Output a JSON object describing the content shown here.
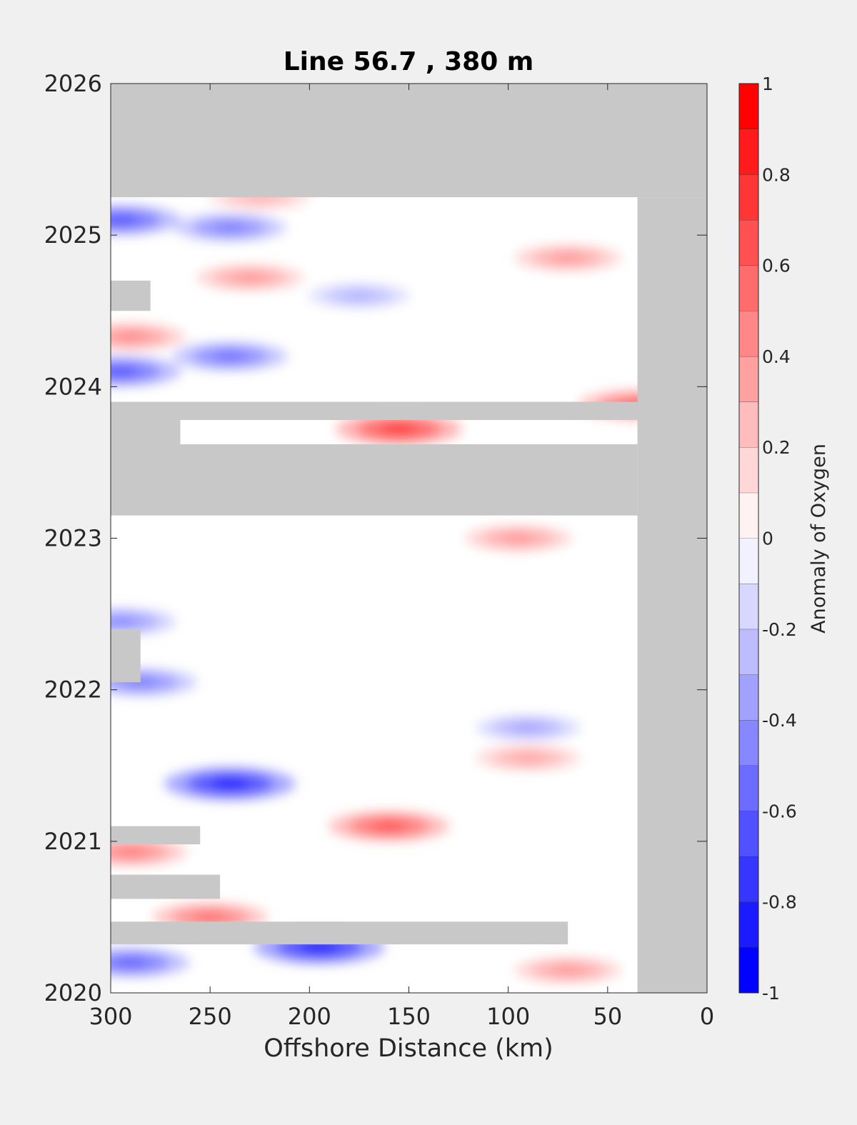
{
  "chart_data": {
    "type": "heatmap",
    "subtype": "filled-contour",
    "title": "Line 56.7 , 380 m",
    "xlabel": "Offshore Distance (km)",
    "ylabel": "",
    "x_axis": {
      "range": [
        300,
        0
      ],
      "reversed": true,
      "ticks": [
        300,
        250,
        200,
        150,
        100,
        50,
        0
      ],
      "tick_labels": [
        "300",
        "250",
        "200",
        "150",
        "100",
        "50",
        "0"
      ]
    },
    "y_axis": {
      "range": [
        2020,
        2026
      ],
      "ticks": [
        2020,
        2021,
        2022,
        2023,
        2024,
        2025,
        2026
      ],
      "tick_labels": [
        "2020",
        "2021",
        "2022",
        "2023",
        "2024",
        "2025",
        "2026"
      ]
    },
    "colorbar": {
      "label": "Anomaly of Oxygen",
      "range": [
        -1,
        1
      ],
      "levels": [
        -1,
        -0.9,
        -0.8,
        -0.7,
        -0.6,
        -0.5,
        -0.4,
        -0.3,
        -0.2,
        -0.1,
        0,
        0.1,
        0.2,
        0.3,
        0.4,
        0.5,
        0.6,
        0.7,
        0.8,
        0.9,
        1
      ],
      "ticks": [
        1,
        0.8,
        0.6,
        0.4,
        0.2,
        0,
        -0.2,
        -0.4,
        -0.6,
        -0.8,
        -1
      ],
      "tick_labels": [
        "1",
        "0.8",
        "0.6",
        "0.4",
        "0.2",
        "0",
        "-0.2",
        "-0.4",
        "-0.6",
        "-0.8",
        "-1"
      ],
      "colormap": "blue-white-red"
    },
    "no_data_color": "#c8c8c8",
    "no_data_regions": [
      {
        "x": [
          300,
          0
        ],
        "y": [
          2025.25,
          2026
        ]
      },
      {
        "x": [
          35,
          0
        ],
        "y": [
          2020,
          2025.25
        ]
      },
      {
        "x": [
          300,
          35
        ],
        "y": [
          2023.15,
          2023.62
        ]
      },
      {
        "x": [
          300,
          35
        ],
        "y": [
          2023.78,
          2023.9
        ]
      },
      {
        "x": [
          300,
          265
        ],
        "y": [
          2023.62,
          2023.78
        ]
      },
      {
        "x": [
          300,
          70
        ],
        "y": [
          2020.32,
          2020.47
        ]
      },
      {
        "x": [
          300,
          280
        ],
        "y": [
          2024.5,
          2024.7
        ]
      },
      {
        "x": [
          300,
          285
        ],
        "y": [
          2022.05,
          2022.4
        ]
      },
      {
        "x": [
          300,
          255
        ],
        "y": [
          2020.98,
          2021.1
        ]
      },
      {
        "x": [
          300,
          245
        ],
        "y": [
          2020.62,
          2020.78
        ]
      }
    ],
    "anomalies": [
      {
        "x": 155,
        "y": 2023.72,
        "value": 0.75
      },
      {
        "x": 35,
        "y": 2023.88,
        "value": 0.6
      },
      {
        "x": 160,
        "y": 2021.1,
        "value": 0.65
      },
      {
        "x": 95,
        "y": 2023.0,
        "value": 0.4
      },
      {
        "x": 70,
        "y": 2024.85,
        "value": 0.4
      },
      {
        "x": 230,
        "y": 2024.72,
        "value": 0.4
      },
      {
        "x": 290,
        "y": 2024.33,
        "value": 0.45
      },
      {
        "x": 290,
        "y": 2020.93,
        "value": 0.5
      },
      {
        "x": 250,
        "y": 2020.5,
        "value": 0.55
      },
      {
        "x": 70,
        "y": 2020.15,
        "value": 0.4
      },
      {
        "x": 90,
        "y": 2021.55,
        "value": 0.35
      },
      {
        "x": 225,
        "y": 2025.25,
        "value": 0.3
      },
      {
        "x": 295,
        "y": 2025.1,
        "value": -0.65
      },
      {
        "x": 240,
        "y": 2025.05,
        "value": -0.5
      },
      {
        "x": 240,
        "y": 2024.2,
        "value": -0.55
      },
      {
        "x": 295,
        "y": 2024.1,
        "value": -0.65
      },
      {
        "x": 240,
        "y": 2021.38,
        "value": -0.85
      },
      {
        "x": 195,
        "y": 2020.3,
        "value": -0.85
      },
      {
        "x": 285,
        "y": 2022.05,
        "value": -0.5
      },
      {
        "x": 295,
        "y": 2022.45,
        "value": -0.45
      },
      {
        "x": 90,
        "y": 2021.75,
        "value": -0.35
      },
      {
        "x": 175,
        "y": 2024.6,
        "value": -0.3
      },
      {
        "x": 290,
        "y": 2020.2,
        "value": -0.6
      }
    ]
  }
}
